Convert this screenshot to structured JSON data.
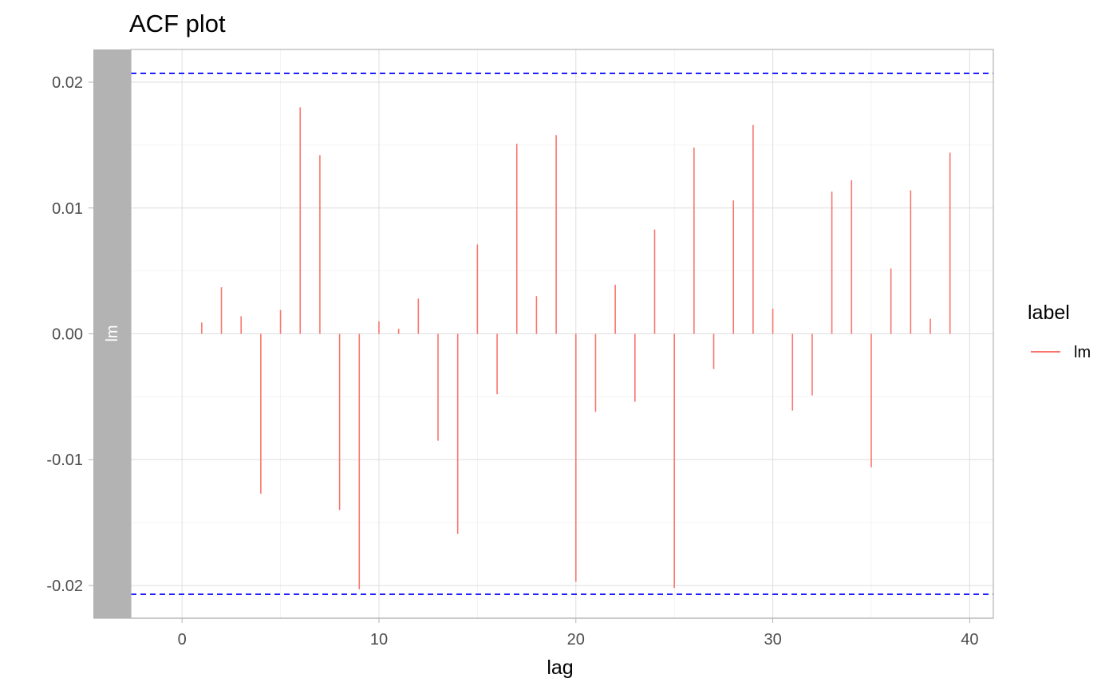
{
  "chart_data": {
    "type": "bar",
    "title": "ACF plot",
    "xlabel": "lag",
    "ylabel": "",
    "xlim": [
      -2.6,
      41.2
    ],
    "ylim": [
      -0.0226,
      0.0226
    ],
    "x_ticks": [
      0,
      10,
      20,
      30,
      40
    ],
    "x_tick_labels": [
      "0",
      "10",
      "20",
      "30",
      "40"
    ],
    "y_ticks": [
      -0.02,
      -0.01,
      0.0,
      0.01,
      0.02
    ],
    "y_tick_labels": [
      "-0.02",
      "-0.01",
      "0.00",
      "0.01",
      "0.02"
    ],
    "grid": true,
    "facet_strip": "lm",
    "series": [
      {
        "name": "lm",
        "color": "#f8766d",
        "lags": [
          1,
          2,
          3,
          4,
          5,
          6,
          7,
          8,
          9,
          10,
          11,
          12,
          13,
          14,
          15,
          16,
          17,
          18,
          19,
          20,
          21,
          22,
          23,
          24,
          25,
          26,
          27,
          28,
          29,
          30,
          31,
          32,
          33,
          34,
          35,
          36,
          37,
          38,
          39
        ],
        "values": [
          0.0009,
          0.0037,
          0.0014,
          -0.0127,
          0.0019,
          0.018,
          0.0142,
          -0.014,
          -0.0203,
          0.001,
          0.0004,
          0.0028,
          -0.0085,
          -0.0159,
          0.0071,
          -0.0048,
          0.0151,
          0.003,
          0.0158,
          -0.0197,
          -0.0062,
          0.0039,
          -0.0054,
          0.0083,
          -0.0202,
          0.0148,
          -0.0028,
          0.0106,
          0.0166,
          0.002,
          -0.0061,
          -0.0049,
          0.0113,
          0.0122,
          -0.0106,
          0.0052,
          0.0114,
          0.0012,
          0.0144
        ]
      }
    ],
    "confidence_bounds": [
      0.0207,
      -0.0207
    ],
    "confidence_color": "#0000ff",
    "legend": {
      "title": "label",
      "placement": "right"
    }
  }
}
